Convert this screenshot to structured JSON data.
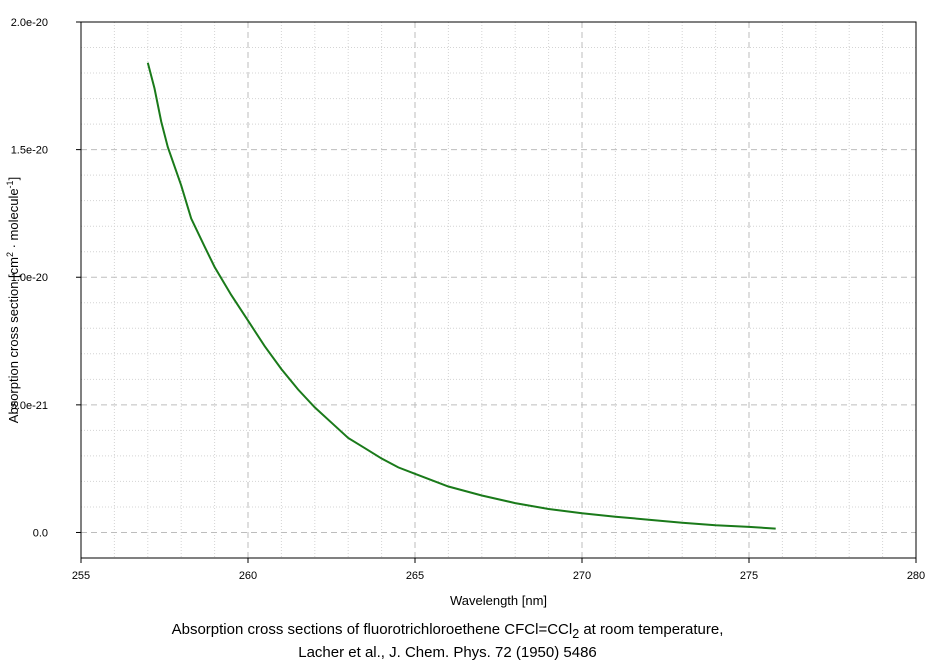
{
  "chart_data": {
    "type": "line",
    "xlabel": "Wavelength [nm]",
    "ylabel_parts": {
      "main": "Absorption cross section [cm",
      "sup1": "2",
      "mid": " · molecule",
      "sup2": "-1",
      "end": "]"
    },
    "xlim": [
      255,
      280
    ],
    "ylim": [
      -1e-21,
      2e-20
    ],
    "x_ticks": [
      255,
      260,
      265,
      270,
      275,
      280
    ],
    "x_tick_labels": [
      "255",
      "260",
      "265",
      "270",
      "275",
      "280"
    ],
    "y_ticks": [
      0,
      5e-21,
      1e-20,
      1.5e-20,
      2e-20
    ],
    "y_tick_labels": [
      "0.0",
      "5.0e-21",
      "1.0e-20",
      "1.5e-20",
      "2.0e-20"
    ],
    "grid": true,
    "series": [
      {
        "color": "#1a7a1a",
        "x": [
          257.0,
          257.2,
          257.4,
          257.6,
          258.0,
          258.3,
          258.7,
          259.0,
          259.5,
          260.0,
          260.5,
          261.0,
          261.5,
          262.0,
          262.5,
          263.0,
          263.5,
          264.0,
          264.5,
          265.0,
          265.5,
          266.0,
          267.0,
          268.0,
          269.0,
          270.0,
          271.0,
          272.0,
          273.0,
          274.0,
          275.0,
          275.8
        ],
        "y": [
          1.84e-20,
          1.74e-20,
          1.61e-20,
          1.51e-20,
          1.36e-20,
          1.23e-20,
          1.12e-20,
          1.04e-20,
          9.3e-21,
          8.3e-21,
          7.3e-21,
          6.4e-21,
          5.6e-21,
          4.9e-21,
          4.3e-21,
          3.7e-21,
          3.3e-21,
          2.9e-21,
          2.55e-21,
          2.3e-21,
          2.05e-21,
          1.8e-21,
          1.45e-21,
          1.15e-21,
          9.2e-22,
          7.5e-22,
          6.2e-22,
          5e-22,
          3.8e-22,
          2.8e-22,
          2.2e-22,
          1.5e-22
        ]
      }
    ]
  },
  "caption": {
    "line1_pre": "Absorption cross sections of fluorotrichloroethene CFCl=CCl",
    "line1_sub": "2",
    "line1_post": " at room temperature,",
    "line2": "Lacher et al., J. Chem. Phys. 72 (1950) 5486"
  }
}
